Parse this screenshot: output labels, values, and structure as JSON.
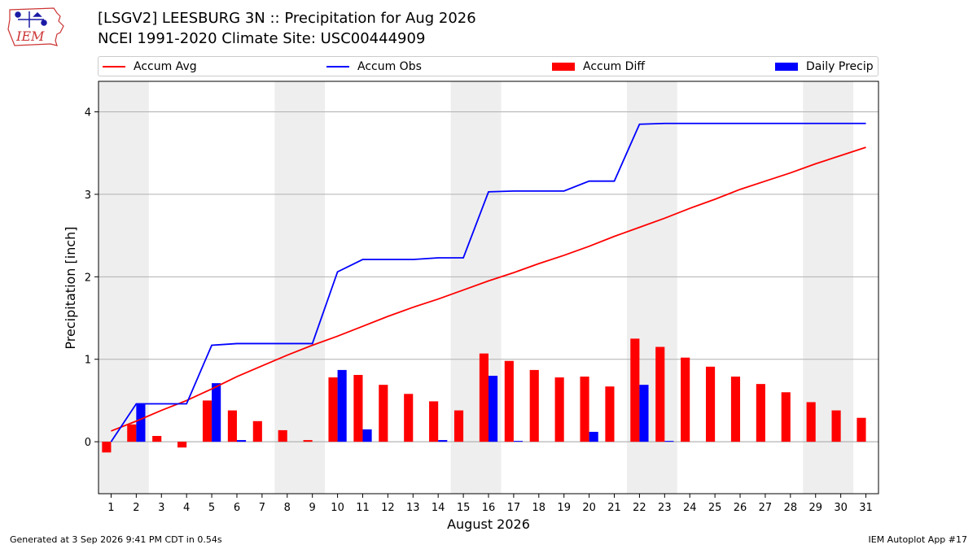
{
  "logo": {
    "text": "IEM",
    "name": "iem-logo"
  },
  "title_line1": "[LSGV2] LEESBURG 3N :: Precipitation for Aug 2026",
  "title_line2": "NCEI 1991-2020 Climate Site: USC00444909",
  "legend": [
    {
      "label": "Accum Avg",
      "kind": "line",
      "color": "#ff0000"
    },
    {
      "label": "Accum Obs",
      "kind": "line",
      "color": "#0000ff"
    },
    {
      "label": "Accum Diff",
      "kind": "box",
      "color": "#ff0000"
    },
    {
      "label": "Daily Precip",
      "kind": "box",
      "color": "#0000ff"
    }
  ],
  "footer_left": "Generated at 3 Sep 2026 9:41 PM CDT in 0.54s",
  "footer_right": "IEM Autoplot App #17",
  "chart_data": {
    "type": "bar",
    "xlabel": "August 2026",
    "ylabel": "Precipitation [inch]",
    "x": [
      1,
      2,
      3,
      4,
      5,
      6,
      7,
      8,
      9,
      10,
      11,
      12,
      13,
      14,
      15,
      16,
      17,
      18,
      19,
      20,
      21,
      22,
      23,
      24,
      25,
      26,
      27,
      28,
      29,
      30,
      31
    ],
    "xlim": [
      0.5,
      31.5
    ],
    "ylim": [
      -0.63,
      4.37
    ],
    "yticks": [
      0,
      1,
      2,
      3,
      4
    ],
    "grid": "horizontal",
    "weekend_shading": [
      [
        1,
        2
      ],
      [
        8,
        9
      ],
      [
        15,
        16
      ],
      [
        22,
        23
      ],
      [
        29,
        30
      ]
    ],
    "series": [
      {
        "name": "Accum Avg",
        "type": "line",
        "color": "#ff0000",
        "values": [
          0.13,
          0.25,
          0.38,
          0.5,
          0.64,
          0.79,
          0.92,
          1.05,
          1.17,
          1.28,
          1.4,
          1.52,
          1.63,
          1.73,
          1.84,
          1.95,
          2.05,
          2.16,
          2.26,
          2.37,
          2.49,
          2.6,
          2.71,
          2.83,
          2.94,
          3.06,
          3.16,
          3.26,
          3.37,
          3.47,
          3.57
        ]
      },
      {
        "name": "Accum Obs",
        "type": "line",
        "color": "#0000ff",
        "values": [
          0.0,
          0.46,
          0.46,
          0.46,
          1.17,
          1.19,
          1.19,
          1.19,
          1.19,
          2.06,
          2.21,
          2.21,
          2.21,
          2.23,
          2.23,
          3.03,
          3.04,
          3.04,
          3.04,
          3.16,
          3.16,
          3.85,
          3.86,
          3.86,
          3.86,
          3.86,
          3.86,
          3.86,
          3.86,
          3.86,
          3.86
        ]
      },
      {
        "name": "Accum Diff",
        "type": "bar",
        "color": "#ff0000",
        "values": [
          -0.13,
          0.21,
          0.07,
          -0.07,
          0.5,
          0.38,
          0.25,
          0.14,
          0.02,
          0.78,
          0.81,
          0.69,
          0.58,
          0.49,
          0.38,
          1.07,
          0.98,
          0.87,
          0.78,
          0.79,
          0.67,
          1.25,
          1.15,
          1.02,
          0.91,
          0.79,
          0.7,
          0.6,
          0.48,
          0.38,
          0.29
        ]
      },
      {
        "name": "Daily Precip",
        "type": "bar",
        "color": "#0000ff",
        "values": [
          0.0,
          0.46,
          0.0,
          0.0,
          0.71,
          0.02,
          0.0,
          0.0,
          0.0,
          0.87,
          0.15,
          0.0,
          0.0,
          0.02,
          0.0,
          0.8,
          0.01,
          0.0,
          0.0,
          0.12,
          0.0,
          0.69,
          0.01,
          0.0,
          0.0,
          0.0,
          0.0,
          0.0,
          0.0,
          0.0,
          0.0
        ]
      }
    ]
  }
}
